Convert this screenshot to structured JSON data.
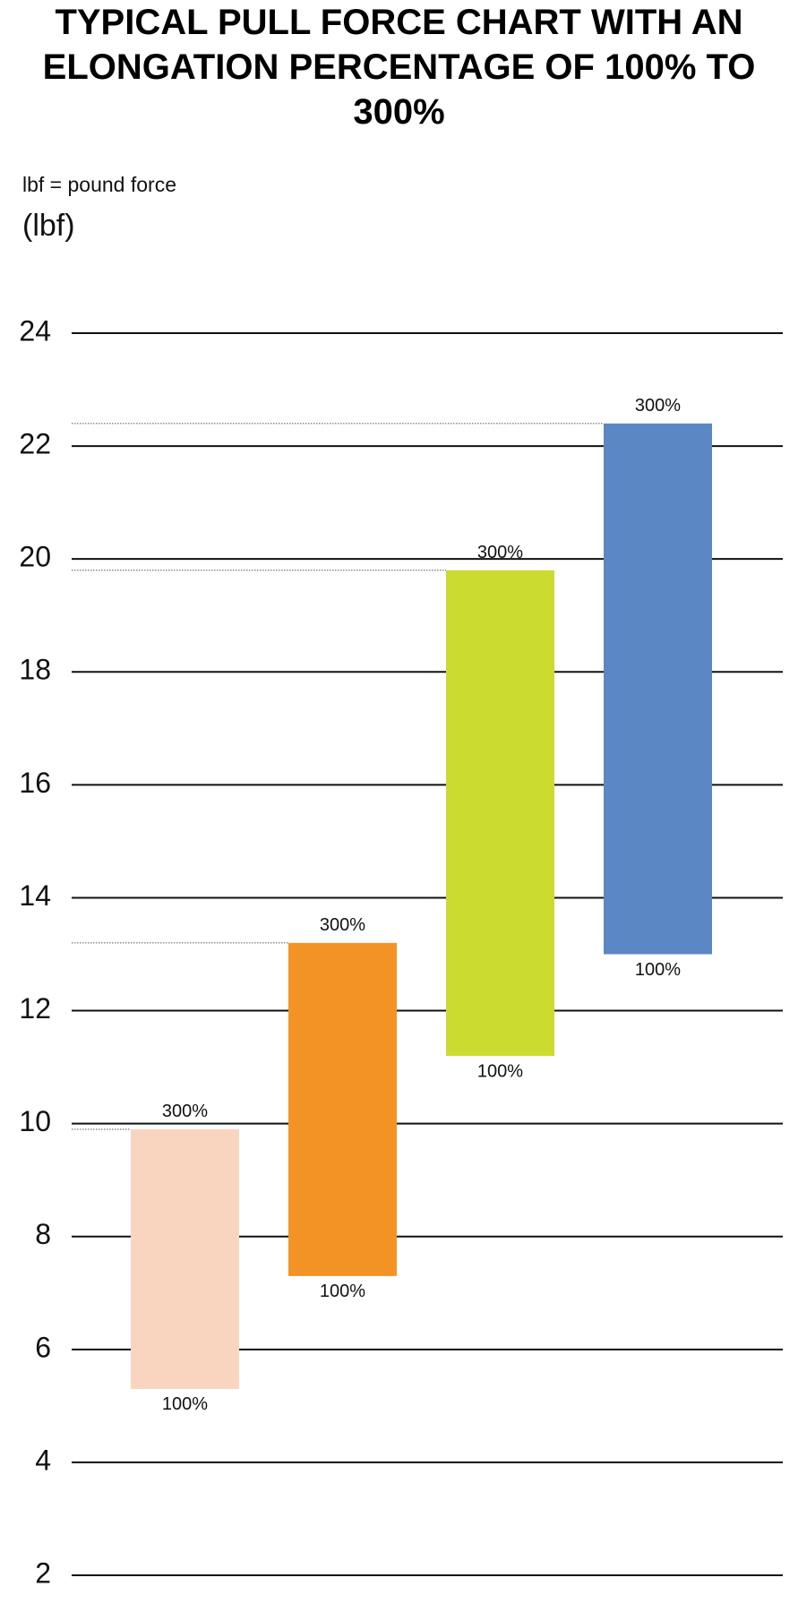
{
  "chart_data": {
    "type": "range",
    "title": "TYPICAL PULL FORCE CHART WITH AN ELONGATION PERCENTAGE OF 100% TO 300%",
    "subtitle": "lbf = pound force",
    "y_label": "(lbf)",
    "categories": [
      null,
      null,
      null,
      null
    ],
    "colors": [
      "#f9d5c0",
      "#f39325",
      "#cbdb2f",
      "#5b87c5"
    ],
    "series": [
      {
        "name": "100%",
        "values": [
          5.3,
          7.3,
          11.2,
          13.0
        ]
      },
      {
        "name": "300%",
        "values": [
          9.9,
          13.2,
          19.8,
          22.4
        ]
      }
    ],
    "ylim": [
      2,
      24
    ],
    "yticks": [
      2,
      4,
      6,
      8,
      10,
      12,
      14,
      16,
      18,
      20,
      22,
      24
    ],
    "grid": true
  }
}
